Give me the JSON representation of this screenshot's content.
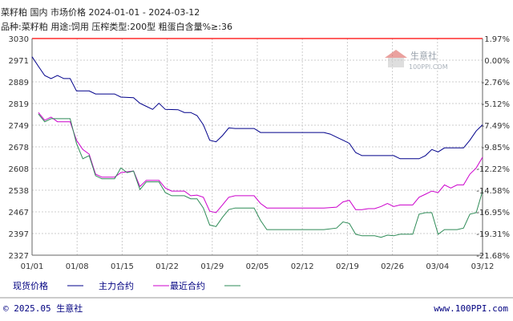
{
  "header": {
    "line1": "菜籽粕 国内 市场价格 2024-01-01 - 2024-03-12",
    "line2": "品种:菜籽粕 用途:饲用 压榨类型:200型 粗蛋白含量%≥:36"
  },
  "logo": {
    "text": "生意社",
    "sub": "100PPI.COM"
  },
  "footer": {
    "left": "© 2025.05 生意社",
    "right": "www.100PPI.com"
  },
  "colors": {
    "spot": "#00008B",
    "main_contract": "#CC00CC",
    "recent_contract": "#2E8B57",
    "axis_top": "#FF0000",
    "grid": "#cccccc"
  },
  "chart_data": {
    "type": "line",
    "x_tick_labels": [
      "01/01",
      "01/08",
      "01/15",
      "01/22",
      "01/29",
      "02/05",
      "02/12",
      "02/19",
      "02/26",
      "03/04",
      "03/12"
    ],
    "x_range": [
      "2024-01-01",
      "2024-03-12"
    ],
    "ylim": [
      2327,
      3030
    ],
    "left_ticks": [
      "3030",
      "2971",
      "2889",
      "2819",
      "2749",
      "2678",
      "2608",
      "2538",
      "2467",
      "2397",
      "2327"
    ],
    "right_ticks": [
      "1.97%",
      "0.00%",
      "-2.76%",
      "-5.12%",
      "-7.49%",
      "-9.85%",
      "-12.22%",
      "-14.58%",
      "-16.95%",
      "-19.31%",
      "-21.68%"
    ],
    "grid": true,
    "legend_position": "bottom",
    "series": [
      {
        "name": "现货价格",
        "points": [
          [
            "2024-01-01",
            2971
          ],
          [
            "2024-01-02",
            2940
          ],
          [
            "2024-01-03",
            2910
          ],
          [
            "2024-01-04",
            2900
          ],
          [
            "2024-01-05",
            2910
          ],
          [
            "2024-01-06",
            2900
          ],
          [
            "2024-01-07",
            2900
          ],
          [
            "2024-01-08",
            2860
          ],
          [
            "2024-01-10",
            2860
          ],
          [
            "2024-01-11",
            2850
          ],
          [
            "2024-01-14",
            2850
          ],
          [
            "2024-01-15",
            2840
          ],
          [
            "2024-01-17",
            2838
          ],
          [
            "2024-01-18",
            2820
          ],
          [
            "2024-01-19",
            2810
          ],
          [
            "2024-01-20",
            2800
          ],
          [
            "2024-01-21",
            2820
          ],
          [
            "2024-01-22",
            2800
          ],
          [
            "2024-01-24",
            2799
          ],
          [
            "2024-01-25",
            2790
          ],
          [
            "2024-01-26",
            2790
          ],
          [
            "2024-01-27",
            2780
          ],
          [
            "2024-01-28",
            2750
          ],
          [
            "2024-01-29",
            2700
          ],
          [
            "2024-01-30",
            2695
          ],
          [
            "2024-01-31",
            2715
          ],
          [
            "2024-02-01",
            2740
          ],
          [
            "2024-02-02",
            2738
          ],
          [
            "2024-02-05",
            2738
          ],
          [
            "2024-02-06",
            2725
          ],
          [
            "2024-02-16",
            2725
          ],
          [
            "2024-02-17",
            2720
          ],
          [
            "2024-02-18",
            2710
          ],
          [
            "2024-02-19",
            2700
          ],
          [
            "2024-02-20",
            2690
          ],
          [
            "2024-02-21",
            2660
          ],
          [
            "2024-02-22",
            2650
          ],
          [
            "2024-02-27",
            2650
          ],
          [
            "2024-02-28",
            2640
          ],
          [
            "2024-03-02",
            2640
          ],
          [
            "2024-03-03",
            2650
          ],
          [
            "2024-03-04",
            2670
          ],
          [
            "2024-03-05",
            2662
          ],
          [
            "2024-03-06",
            2675
          ],
          [
            "2024-03-09",
            2675
          ],
          [
            "2024-03-10",
            2700
          ],
          [
            "2024-03-11",
            2730
          ],
          [
            "2024-03-12",
            2750
          ]
        ]
      },
      {
        "name": "主力合约",
        "points": [
          [
            "2024-01-02",
            2790
          ],
          [
            "2024-01-03",
            2765
          ],
          [
            "2024-01-04",
            2775
          ],
          [
            "2024-01-05",
            2760
          ],
          [
            "2024-01-07",
            2760
          ],
          [
            "2024-01-08",
            2700
          ],
          [
            "2024-01-09",
            2670
          ],
          [
            "2024-01-10",
            2655
          ],
          [
            "2024-01-11",
            2590
          ],
          [
            "2024-01-12",
            2580
          ],
          [
            "2024-01-14",
            2580
          ],
          [
            "2024-01-15",
            2595
          ],
          [
            "2024-01-17",
            2600
          ],
          [
            "2024-01-18",
            2550
          ],
          [
            "2024-01-19",
            2570
          ],
          [
            "2024-01-21",
            2570
          ],
          [
            "2024-01-22",
            2545
          ],
          [
            "2024-01-23",
            2535
          ],
          [
            "2024-01-25",
            2535
          ],
          [
            "2024-01-26",
            2520
          ],
          [
            "2024-01-27",
            2522
          ],
          [
            "2024-01-28",
            2515
          ],
          [
            "2024-01-29",
            2470
          ],
          [
            "2024-01-30",
            2465
          ],
          [
            "2024-01-31",
            2490
          ],
          [
            "2024-02-01",
            2515
          ],
          [
            "2024-02-02",
            2520
          ],
          [
            "2024-02-05",
            2520
          ],
          [
            "2024-02-06",
            2495
          ],
          [
            "2024-02-07",
            2480
          ],
          [
            "2024-02-16",
            2480
          ],
          [
            "2024-02-18",
            2483
          ],
          [
            "2024-02-19",
            2500
          ],
          [
            "2024-02-20",
            2505
          ],
          [
            "2024-02-21",
            2475
          ],
          [
            "2024-02-22",
            2475
          ],
          [
            "2024-02-23",
            2478
          ],
          [
            "2024-02-24",
            2478
          ],
          [
            "2024-02-25",
            2485
          ],
          [
            "2024-02-26",
            2495
          ],
          [
            "2024-02-27",
            2485
          ],
          [
            "2024-02-28",
            2490
          ],
          [
            "2024-03-01",
            2490
          ],
          [
            "2024-03-02",
            2515
          ],
          [
            "2024-03-03",
            2525
          ],
          [
            "2024-03-04",
            2535
          ],
          [
            "2024-03-05",
            2530
          ],
          [
            "2024-03-06",
            2555
          ],
          [
            "2024-03-07",
            2545
          ],
          [
            "2024-03-08",
            2555
          ],
          [
            "2024-03-09",
            2555
          ],
          [
            "2024-03-10",
            2590
          ],
          [
            "2024-03-11",
            2610
          ],
          [
            "2024-03-12",
            2645
          ]
        ]
      },
      {
        "name": "最近合约",
        "points": [
          [
            "2024-01-02",
            2785
          ],
          [
            "2024-01-03",
            2760
          ],
          [
            "2024-01-04",
            2770
          ],
          [
            "2024-01-05",
            2770
          ],
          [
            "2024-01-07",
            2770
          ],
          [
            "2024-01-08",
            2690
          ],
          [
            "2024-01-09",
            2640
          ],
          [
            "2024-01-10",
            2650
          ],
          [
            "2024-01-11",
            2585
          ],
          [
            "2024-01-12",
            2575
          ],
          [
            "2024-01-14",
            2575
          ],
          [
            "2024-01-15",
            2610
          ],
          [
            "2024-01-16",
            2595
          ],
          [
            "2024-01-17",
            2600
          ],
          [
            "2024-01-18",
            2540
          ],
          [
            "2024-01-19",
            2565
          ],
          [
            "2024-01-21",
            2565
          ],
          [
            "2024-01-22",
            2530
          ],
          [
            "2024-01-23",
            2520
          ],
          [
            "2024-01-25",
            2520
          ],
          [
            "2024-01-26",
            2510
          ],
          [
            "2024-01-27",
            2510
          ],
          [
            "2024-01-28",
            2480
          ],
          [
            "2024-01-29",
            2425
          ],
          [
            "2024-01-30",
            2420
          ],
          [
            "2024-01-31",
            2450
          ],
          [
            "2024-02-01",
            2475
          ],
          [
            "2024-02-02",
            2480
          ],
          [
            "2024-02-05",
            2480
          ],
          [
            "2024-02-06",
            2440
          ],
          [
            "2024-02-07",
            2410
          ],
          [
            "2024-02-16",
            2410
          ],
          [
            "2024-02-18",
            2415
          ],
          [
            "2024-02-19",
            2435
          ],
          [
            "2024-02-20",
            2430
          ],
          [
            "2024-02-21",
            2395
          ],
          [
            "2024-02-22",
            2390
          ],
          [
            "2024-02-24",
            2390
          ],
          [
            "2024-02-25",
            2385
          ],
          [
            "2024-02-26",
            2392
          ],
          [
            "2024-02-27",
            2390
          ],
          [
            "2024-02-28",
            2395
          ],
          [
            "2024-03-01",
            2395
          ],
          [
            "2024-03-02",
            2460
          ],
          [
            "2024-03-03",
            2465
          ],
          [
            "2024-03-04",
            2465
          ],
          [
            "2024-03-05",
            2395
          ],
          [
            "2024-03-06",
            2410
          ],
          [
            "2024-03-07",
            2410
          ],
          [
            "2024-03-08",
            2410
          ],
          [
            "2024-03-09",
            2415
          ],
          [
            "2024-03-10",
            2460
          ],
          [
            "2024-03-11",
            2465
          ],
          [
            "2024-03-12",
            2535
          ]
        ]
      }
    ]
  }
}
